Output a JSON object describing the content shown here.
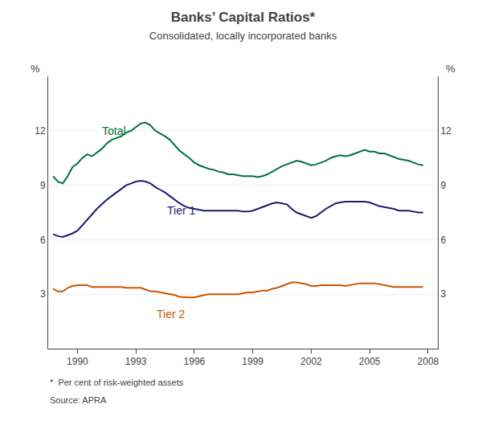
{
  "chart_data": {
    "type": "line",
    "title": "Banks’ Capital Ratios*",
    "subtitle": "Consolidated, locally incorporated banks",
    "footnote": "*  Per cent of risk-weighted assets",
    "source": "Source: APRA",
    "ylabel": "%",
    "y2label": "%",
    "x": [
      1988.75,
      1989.0,
      1989.25,
      1989.5,
      1989.75,
      1990.0,
      1990.25,
      1990.5,
      1990.75,
      1991.0,
      1991.25,
      1991.5,
      1991.75,
      1992.0,
      1992.25,
      1992.5,
      1992.75,
      1993.0,
      1993.25,
      1993.5,
      1993.75,
      1994.0,
      1994.25,
      1994.5,
      1994.75,
      1995.0,
      1995.25,
      1995.5,
      1995.75,
      1996.0,
      1996.25,
      1996.5,
      1996.75,
      1997.0,
      1997.25,
      1997.5,
      1997.75,
      1998.0,
      1998.25,
      1998.5,
      1998.75,
      1999.0,
      1999.25,
      1999.5,
      1999.75,
      2000.0,
      2000.25,
      2000.5,
      2000.75,
      2001.0,
      2001.25,
      2001.5,
      2001.75,
      2002.0,
      2002.25,
      2002.5,
      2002.75,
      2003.0,
      2003.25,
      2003.5,
      2003.75,
      2004.0,
      2004.25,
      2004.5,
      2004.75,
      2005.0,
      2005.25,
      2005.5,
      2005.75,
      2006.0,
      2006.25,
      2006.5,
      2006.75,
      2007.0,
      2007.25,
      2007.5,
      2007.75
    ],
    "series": [
      {
        "name": "Total",
        "color": "#007040",
        "values": [
          9.5,
          9.2,
          9.1,
          9.5,
          10.0,
          10.2,
          10.5,
          10.7,
          10.6,
          10.8,
          11.0,
          11.3,
          11.5,
          11.6,
          11.7,
          11.9,
          12.0,
          12.2,
          12.4,
          12.45,
          12.3,
          12.0,
          11.85,
          11.7,
          11.5,
          11.2,
          10.9,
          10.7,
          10.5,
          10.25,
          10.1,
          10.0,
          9.9,
          9.85,
          9.75,
          9.7,
          9.6,
          9.6,
          9.55,
          9.5,
          9.5,
          9.5,
          9.45,
          9.5,
          9.6,
          9.75,
          9.9,
          10.05,
          10.15,
          10.25,
          10.35,
          10.3,
          10.2,
          10.1,
          10.15,
          10.25,
          10.35,
          10.5,
          10.6,
          10.65,
          10.6,
          10.65,
          10.75,
          10.85,
          10.95,
          10.85,
          10.85,
          10.75,
          10.75,
          10.65,
          10.55,
          10.45,
          10.4,
          10.35,
          10.25,
          10.15,
          10.1
        ]
      },
      {
        "name": "Tier 1",
        "color": "#1c1c6e",
        "values": [
          6.3,
          6.2,
          6.15,
          6.25,
          6.35,
          6.5,
          6.8,
          7.1,
          7.4,
          7.7,
          7.95,
          8.2,
          8.4,
          8.6,
          8.8,
          9.0,
          9.1,
          9.2,
          9.25,
          9.2,
          9.1,
          8.9,
          8.75,
          8.6,
          8.4,
          8.2,
          8.0,
          7.85,
          7.75,
          7.7,
          7.65,
          7.6,
          7.6,
          7.6,
          7.6,
          7.6,
          7.6,
          7.6,
          7.6,
          7.55,
          7.55,
          7.6,
          7.7,
          7.8,
          7.9,
          8.0,
          8.05,
          8.0,
          7.95,
          7.7,
          7.5,
          7.4,
          7.3,
          7.2,
          7.3,
          7.5,
          7.7,
          7.85,
          8.0,
          8.05,
          8.1,
          8.1,
          8.1,
          8.1,
          8.1,
          8.05,
          7.95,
          7.85,
          7.8,
          7.75,
          7.7,
          7.6,
          7.6,
          7.6,
          7.55,
          7.5,
          7.5
        ]
      },
      {
        "name": "Tier 2",
        "color": "#cc5500",
        "values": [
          3.3,
          3.15,
          3.15,
          3.35,
          3.45,
          3.5,
          3.5,
          3.5,
          3.4,
          3.4,
          3.4,
          3.4,
          3.4,
          3.4,
          3.4,
          3.35,
          3.35,
          3.35,
          3.35,
          3.25,
          3.15,
          3.15,
          3.1,
          3.05,
          3.0,
          2.95,
          2.85,
          2.82,
          2.82,
          2.82,
          2.9,
          2.95,
          3.0,
          3.0,
          3.0,
          3.0,
          3.0,
          3.0,
          3.0,
          3.05,
          3.1,
          3.1,
          3.15,
          3.2,
          3.2,
          3.3,
          3.35,
          3.45,
          3.55,
          3.65,
          3.65,
          3.6,
          3.55,
          3.45,
          3.45,
          3.5,
          3.5,
          3.5,
          3.5,
          3.5,
          3.45,
          3.5,
          3.55,
          3.6,
          3.6,
          3.6,
          3.6,
          3.55,
          3.5,
          3.45,
          3.4,
          3.4,
          3.4,
          3.4,
          3.4,
          3.4,
          3.4
        ]
      }
    ],
    "annotations": [
      {
        "text": "Total",
        "x": 1991.2,
        "y": 11.55
      },
      {
        "text": "Tier 1",
        "x": 1994.5,
        "y": 8.05
      },
      {
        "text": "Tier 2",
        "x": 1994.0,
        "y": 2.35
      }
    ],
    "xlim": [
      1988.5,
      2008.5
    ],
    "xticks": [
      1990,
      1993,
      1996,
      1999,
      2002,
      2005,
      2008
    ],
    "ylim": [
      0,
      15
    ],
    "yticks": [
      3,
      6,
      9,
      12
    ],
    "y2lim": [
      0,
      15
    ],
    "y2ticks": [
      3,
      6,
      9,
      12
    ],
    "grid": true
  }
}
